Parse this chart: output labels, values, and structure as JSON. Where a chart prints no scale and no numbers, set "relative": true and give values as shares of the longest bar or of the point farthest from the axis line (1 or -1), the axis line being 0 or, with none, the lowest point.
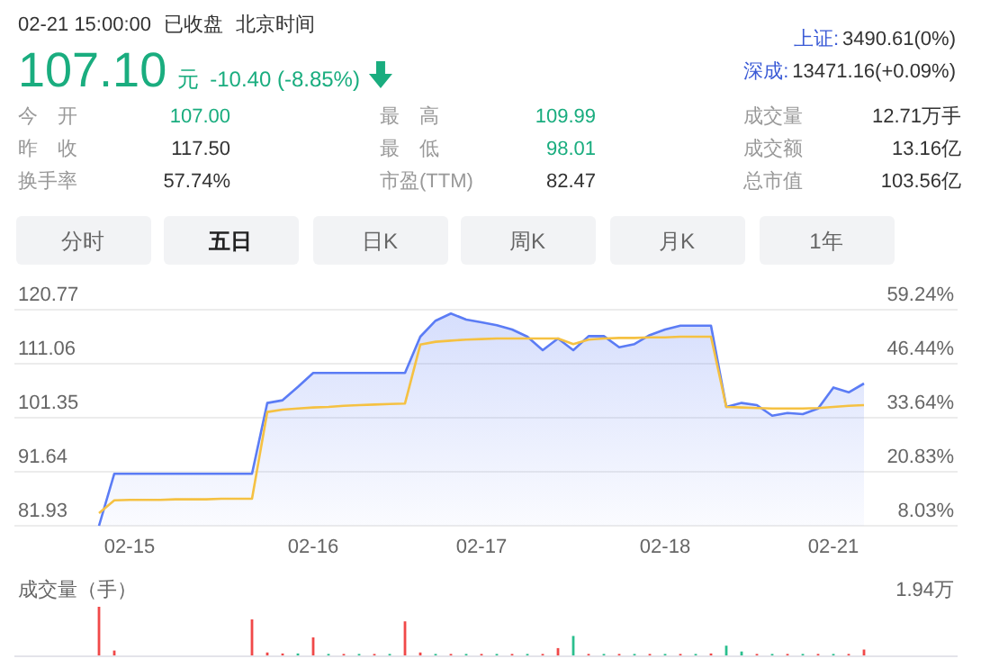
{
  "chart_data": [
    {
      "type": "other",
      "annotations": [
        "02-21 15:00:00",
        "已收盘",
        "北京时间",
        "107.10",
        "元",
        "-10.40 (-8.85%)",
        "上证:",
        "3490.61(0%)",
        "深成:",
        "13471.16(+0.09%)",
        "今　开",
        "107.00",
        "最　高",
        "109.99",
        "成交量",
        "12.71万手",
        "昨　收",
        "117.50",
        "最　低",
        "98.01",
        "成交额",
        "13.16亿",
        "换手率",
        "57.74%",
        "市盈(TTM)",
        "82.47",
        "总市值",
        "103.56亿",
        "分时",
        "五日",
        "日K",
        "周K",
        "月K",
        "1年"
      ]
    },
    {
      "type": "line",
      "categories": [
        null,
        null,
        "02-15",
        null,
        null,
        null,
        null,
        null,
        null,
        null,
        null,
        null,
        null,
        null,
        "02-16",
        null,
        null,
        null,
        null,
        null,
        null,
        null,
        null,
        null,
        null,
        "02-17",
        null,
        null,
        null,
        null,
        null,
        null,
        null,
        null,
        null,
        null,
        null,
        "02-18",
        null,
        null,
        null,
        null,
        null,
        null,
        null,
        null,
        null,
        null,
        "02-21",
        null,
        null
      ],
      "ylim": [
        81.93,
        120.77
      ],
      "yticks": [
        81.93,
        91.64,
        101.35,
        111.06,
        120.77
      ],
      "y2lim": [
        8.03,
        59.24
      ],
      "y2ticks": [
        {
          "value": 8.03,
          "label": "8.03%"
        },
        {
          "value": 20.83,
          "label": "20.83%"
        },
        {
          "value": 33.64,
          "label": "33.64%"
        },
        {
          "value": 46.44,
          "label": "46.44%"
        },
        {
          "value": 59.24,
          "label": "59.24%"
        }
      ],
      "grid": "y",
      "series": [
        {
          "type": "area",
          "color": "#5b7cf5",
          "values": [
            81.93,
            91.3,
            91.3,
            91.3,
            91.3,
            91.3,
            91.3,
            91.3,
            91.3,
            91.3,
            91.3,
            104.0,
            104.5,
            106.9,
            109.4,
            109.4,
            109.4,
            109.4,
            109.4,
            109.4,
            109.4,
            115.9,
            118.8,
            120.1,
            119.0,
            118.5,
            118.0,
            117.2,
            115.9,
            113.5,
            115.6,
            113.5,
            116.0,
            116.0,
            114.0,
            114.6,
            116.2,
            117.2,
            117.9,
            117.9,
            117.9,
            103.3,
            104.0,
            103.6,
            101.7,
            102.2,
            102.0,
            103.0,
            106.8,
            105.9,
            107.5
          ]
        },
        {
          "type": "line",
          "color": "#f5c142",
          "values": [
            84.2,
            86.5,
            86.6,
            86.6,
            86.6,
            86.7,
            86.7,
            86.7,
            86.8,
            86.8,
            86.8,
            102.4,
            102.8,
            103.0,
            103.2,
            103.3,
            103.5,
            103.6,
            103.7,
            103.8,
            103.9,
            114.5,
            115.0,
            115.2,
            115.4,
            115.5,
            115.6,
            115.6,
            115.6,
            115.6,
            115.6,
            114.6,
            115.4,
            115.6,
            115.7,
            115.7,
            115.8,
            115.8,
            115.9,
            115.9,
            115.9,
            103.3,
            103.2,
            103.1,
            103.0,
            103.0,
            103.0,
            103.1,
            103.3,
            103.5,
            103.6
          ]
        }
      ]
    },
    {
      "type": "bar",
      "title": "成交量（手）",
      "annotations": [
        "1.94万"
      ],
      "relative": true,
      "categories": [
        null,
        null,
        null,
        null,
        null,
        null,
        null,
        null,
        null,
        null,
        null,
        null,
        null,
        null,
        null,
        null,
        null,
        null,
        null,
        null,
        null,
        null,
        null,
        null,
        null,
        null,
        null,
        null,
        null,
        null,
        null,
        null,
        null,
        null,
        null,
        null,
        null,
        null,
        null,
        null,
        null,
        null,
        null,
        null,
        null,
        null,
        null,
        null,
        null,
        null,
        null
      ],
      "values": [
        1.0,
        0.1,
        null,
        null,
        null,
        null,
        null,
        null,
        null,
        null,
        0.74,
        0.06,
        0.04,
        0.04,
        0.37,
        0.03,
        0.03,
        0.03,
        0.03,
        0.03,
        0.7,
        0.06,
        0.03,
        0.03,
        0.03,
        0.03,
        0.03,
        0.03,
        0.03,
        0.03,
        0.15,
        0.4,
        0.03,
        0.03,
        0.03,
        0.03,
        0.03,
        0.03,
        0.03,
        0.03,
        0.04,
        0.2,
        0.08,
        0.03,
        0.03,
        0.03,
        0.03,
        0.03,
        0.03,
        0.03,
        0.12
      ],
      "colors": [
        "#f04848",
        "#f04848",
        null,
        null,
        null,
        null,
        null,
        null,
        null,
        null,
        "#f04848",
        "#f04848",
        "#f04848",
        "#2bbf8e",
        "#f04848",
        "#2bbf8e",
        "#f04848",
        "#2bbf8e",
        "#f04848",
        "#2bbf8e",
        "#f04848",
        "#f04848",
        "#2bbf8e",
        "#f04848",
        "#2bbf8e",
        "#f04848",
        "#2bbf8e",
        "#f04848",
        "#2bbf8e",
        "#f04848",
        "#f04848",
        "#2bbf8e",
        "#f04848",
        "#2bbf8e",
        "#f04848",
        "#2bbf8e",
        "#f04848",
        "#2bbf8e",
        "#f04848",
        "#2bbf8e",
        "#f04848",
        "#2bbf8e",
        "#2bbf8e",
        "#f04848",
        "#2bbf8e",
        "#f04848",
        "#2bbf8e",
        "#f04848",
        "#2bbf8e",
        "#f04848",
        "#f04848"
      ]
    }
  ]
}
